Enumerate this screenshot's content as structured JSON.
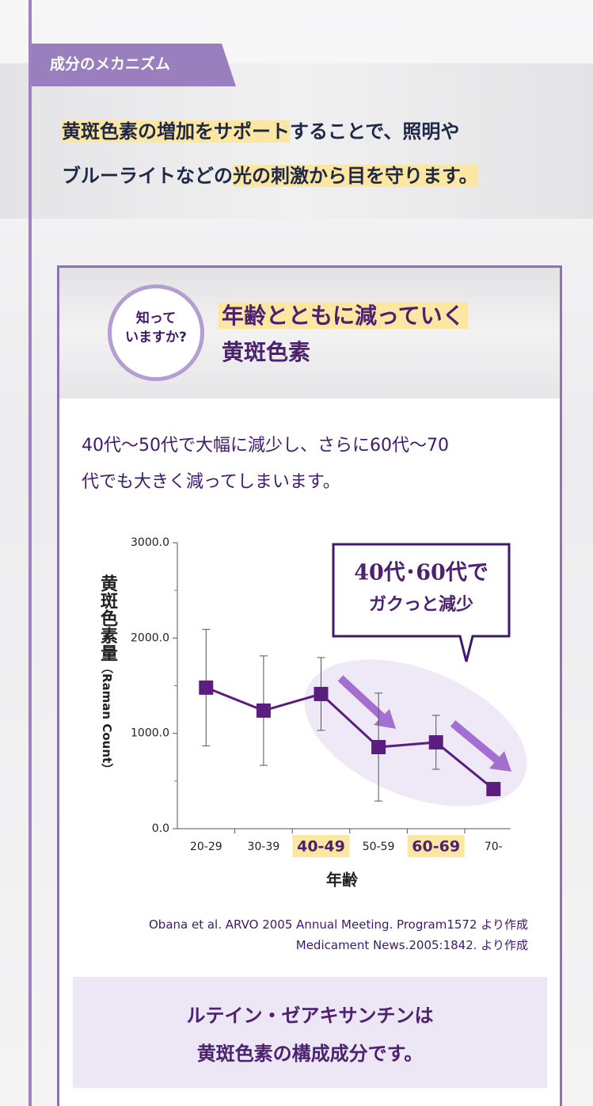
{
  "tag": "成分のメカニズム",
  "intro": {
    "lines": [
      {
        "segments": [
          {
            "text": "黄斑色素の増加をサポート",
            "highlight": true
          },
          {
            "text": "することで、照明や",
            "highlight": false
          }
        ]
      },
      {
        "segments": [
          {
            "text": "ブルーライトなどの",
            "highlight": false
          },
          {
            "text": "光の刺激から目を守ります。",
            "highlight": true
          }
        ]
      }
    ]
  },
  "badge": {
    "lines": [
      "知って",
      "いますか?"
    ]
  },
  "heading": {
    "lines": [
      {
        "text": "年齢とともに減っていく",
        "highlight": true
      },
      {
        "text": "黄斑色素",
        "highlight": false
      }
    ]
  },
  "description": {
    "lines": [
      "40代～50代で大幅に減少し、さらに60代～70",
      "代でも大きく減ってしまいます。"
    ]
  },
  "chart_data": {
    "type": "line",
    "y_label": "黄斑色素量",
    "y_label_unit": "（Raman Count）",
    "x_label": "年齢",
    "categories": [
      "20-29",
      "30-39",
      "40-49",
      "50-59",
      "60-69",
      "70-"
    ],
    "highlighted": [
      false,
      false,
      true,
      false,
      true,
      false
    ],
    "values": [
      1480,
      1239,
      1413,
      856,
      906,
      416
    ],
    "errors": [
      611,
      574,
      382,
      566,
      283,
      null
    ],
    "color": "#5a1e7e",
    "ylim": [
      0,
      3000
    ],
    "yticks": [
      {
        "value": 0,
        "label": "0.0"
      },
      {
        "value": 1000,
        "label": "1000.0"
      },
      {
        "value": 2000,
        "label": "2000.0"
      },
      {
        "value": 3000,
        "label": "3000.0"
      }
    ],
    "minor_yticks": [
      500,
      1500,
      2500
    ],
    "callout": {
      "lines": [
        "40代･60代で",
        "ガクっと減少"
      ]
    }
  },
  "source": {
    "lines": [
      "Obana et al. ARVO 2005 Annual Meeting. Program1572 より作成",
      "Medicament News.2005:1842. より作成"
    ]
  },
  "summary": {
    "lines": [
      "ルテイン・ゼアキサンチンは",
      "黄斑色素の構成成分です。"
    ]
  }
}
